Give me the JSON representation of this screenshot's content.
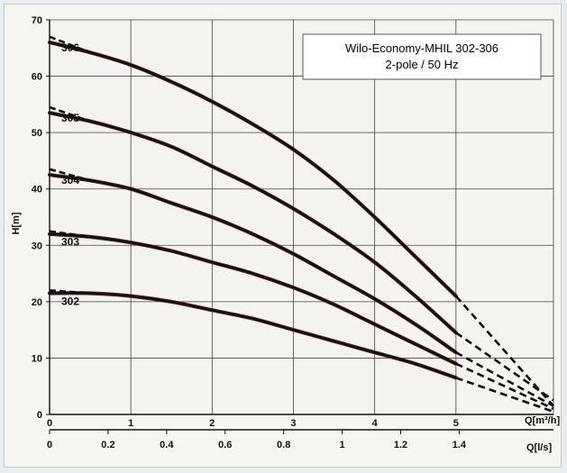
{
  "chart_data": {
    "type": "line",
    "title": "Wilo-Economy-MHIL 302-306",
    "subtitle": "2-pole / 50 Hz",
    "ylabel": "H[m]",
    "xlabel": "Q[m³/h]",
    "xlabel_secondary": "Q[l/s]",
    "xlim": [
      0,
      6.2
    ],
    "ylim": [
      0,
      70
    ],
    "x_ticks": [
      "0",
      "1",
      "2",
      "3",
      "4",
      "5"
    ],
    "x_ticks_secondary": [
      "0",
      "0.2",
      "0.4",
      "0.6",
      "0.8",
      "1",
      "1.2",
      "1.4"
    ],
    "y_ticks": [
      "0",
      "10",
      "20",
      "30",
      "40",
      "50",
      "60",
      "70"
    ],
    "grid": true,
    "legend_position": "top-right",
    "x": [
      0,
      0.5,
      1,
      1.5,
      2,
      2.5,
      3,
      3.5,
      4,
      4.5,
      5
    ],
    "series": [
      {
        "name": "306",
        "shutoff_head": 67,
        "values": [
          66,
          64.2,
          62,
          59,
          55.5,
          51.5,
          47,
          41.5,
          35,
          28,
          21
        ],
        "extension": {
          "x": 6.2,
          "y": 1.5
        }
      },
      {
        "name": "305",
        "shutoff_head": 54.5,
        "values": [
          53.5,
          52,
          50,
          47.5,
          44,
          40.5,
          36.5,
          32,
          27,
          21,
          14.5
        ],
        "extension": {
          "x": 6.2,
          "y": 2.5
        }
      },
      {
        "name": "304",
        "shutoff_head": 43.5,
        "values": [
          42.5,
          41.5,
          40,
          37.5,
          35,
          32,
          28.5,
          24.5,
          20.5,
          16,
          11
        ],
        "extension": {
          "x": 6.2,
          "y": 1.5
        }
      },
      {
        "name": "303",
        "shutoff_head": 32.5,
        "values": [
          32,
          31.5,
          30.5,
          29,
          27,
          25,
          22.5,
          19.5,
          16,
          12.5,
          9
        ],
        "extension": {
          "x": 6.2,
          "y": 1
        }
      },
      {
        "name": "302",
        "shutoff_head": 22,
        "values": [
          21.5,
          21.5,
          21,
          20,
          18.5,
          17,
          15,
          13,
          11,
          9,
          6.5
        ],
        "extension": {
          "x": 6.2,
          "y": 0.5
        }
      }
    ]
  }
}
